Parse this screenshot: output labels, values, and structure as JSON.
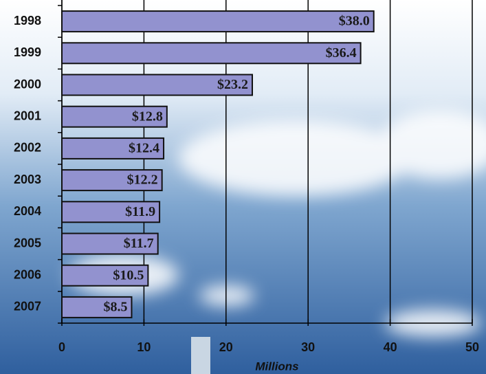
{
  "chart_data": {
    "type": "bar",
    "orientation": "horizontal",
    "categories": [
      "1998",
      "1999",
      "2000",
      "2001",
      "2002",
      "2003",
      "2004",
      "2005",
      "2006",
      "2007"
    ],
    "values": [
      38.0,
      36.4,
      23.2,
      12.8,
      12.4,
      12.2,
      11.9,
      11.7,
      10.5,
      8.5
    ],
    "value_labels": [
      "$38.0",
      "$36.4",
      "$23.2",
      "$12.8",
      "$12.4",
      "$12.2",
      "$11.9",
      "$11.7",
      "$10.5",
      "$8.5"
    ],
    "color": "#9292cf",
    "xlabel": "Millions",
    "xlim": [
      0,
      50
    ],
    "xticks": [
      0,
      10,
      20,
      30,
      40,
      50
    ],
    "grid": true
  }
}
